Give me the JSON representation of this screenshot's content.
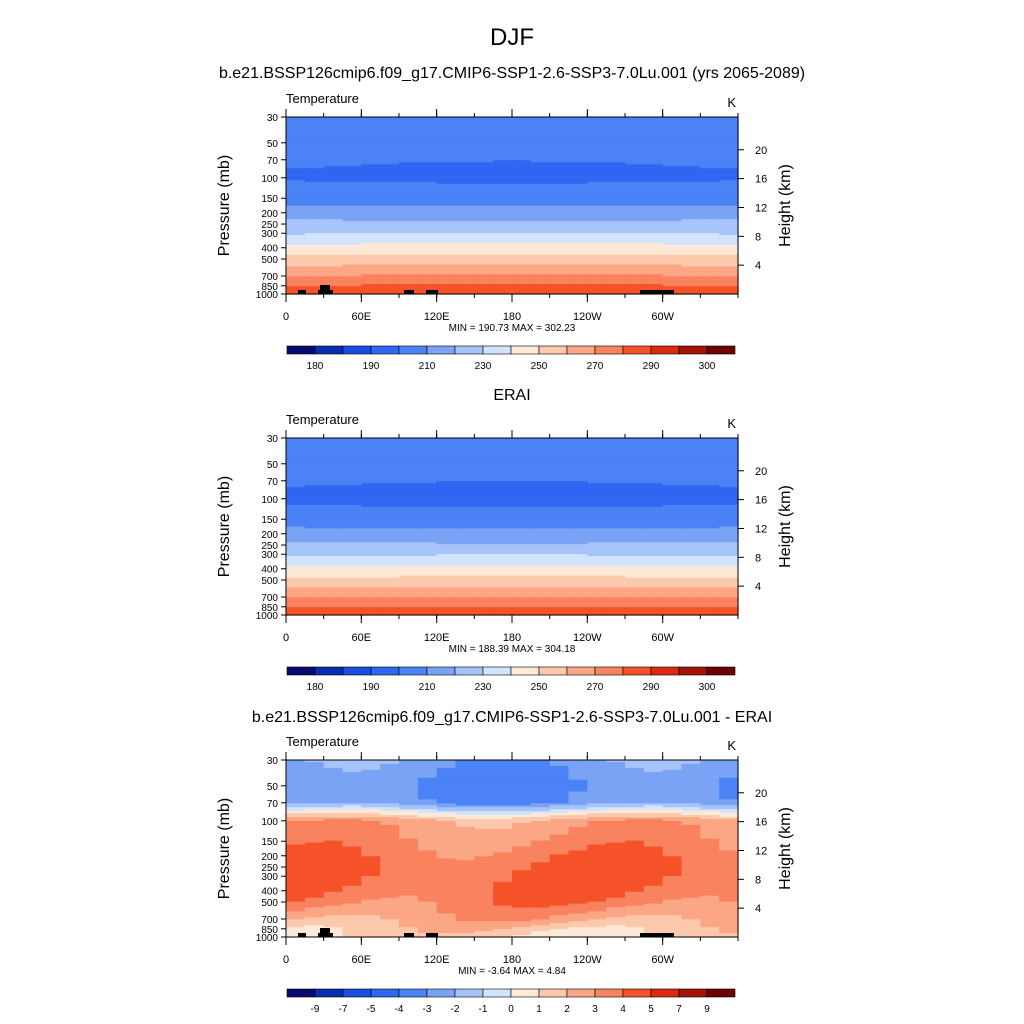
{
  "page": {
    "season": "DJF",
    "model_title": "b.e21.BSSP126cmip6.f09_g17.CMIP6-SSP1-2.6-SSP3-7.0Lu.001 (yrs 2065-2089)",
    "obs_title": "ERAI",
    "diff_title": "b.e21.BSSP126cmip6.f09_g17.CMIP6-SSP1-2.6-SSP3-7.0Lu.001 - ERAI"
  },
  "chart_data": [
    {
      "type": "heatmap",
      "panel": "model",
      "variable": "Temperature",
      "units": "K",
      "ylabel": "Pressure (mb)",
      "ylabel_right": "Height (km)",
      "x_ticks": [
        "0",
        "60E",
        "120E",
        "180",
        "120W",
        "60W"
      ],
      "y_ticks": [
        "30",
        "50",
        "70",
        "100",
        "150",
        "200",
        "250",
        "300",
        "400",
        "500",
        "700",
        "850",
        "1000"
      ],
      "height_ticks": [
        "20",
        "16",
        "12",
        "8",
        "4"
      ],
      "stats": "MIN = 190.73  MAX = 302.23",
      "colorbar_labels": [
        "180",
        "190",
        "210",
        "230",
        "250",
        "270",
        "290",
        "300"
      ],
      "levels_p": [
        30,
        50,
        70,
        100,
        150,
        200,
        250,
        300,
        400,
        500,
        700,
        850,
        1000
      ],
      "profile_K": [
        210,
        205,
        201,
        199,
        206,
        215,
        223,
        229,
        243,
        253,
        270,
        280,
        288
      ]
    },
    {
      "type": "heatmap",
      "panel": "obs",
      "variable": "Temperature",
      "units": "K",
      "ylabel": "Pressure (mb)",
      "ylabel_right": "Height (km)",
      "x_ticks": [
        "0",
        "60E",
        "120E",
        "180",
        "120W",
        "60W"
      ],
      "y_ticks": [
        "30",
        "50",
        "70",
        "100",
        "150",
        "200",
        "250",
        "300",
        "400",
        "500",
        "700",
        "850",
        "1000"
      ],
      "height_ticks": [
        "20",
        "16",
        "12",
        "8",
        "4"
      ],
      "stats": "MIN = 188.39  MAX = 304.18",
      "colorbar_labels": [
        "180",
        "190",
        "210",
        "230",
        "250",
        "270",
        "290",
        "300"
      ],
      "levels_p": [
        30,
        50,
        70,
        100,
        150,
        200,
        250,
        300,
        400,
        500,
        700,
        850,
        1000
      ],
      "profile_K": [
        210,
        205,
        201,
        198,
        205,
        214,
        222,
        228,
        242,
        252,
        269,
        279,
        287
      ]
    },
    {
      "type": "heatmap",
      "panel": "diff",
      "variable": "Temperature",
      "units": "K",
      "ylabel": "Pressure (mb)",
      "ylabel_right": "Height (km)",
      "x_ticks": [
        "0",
        "60E",
        "120E",
        "180",
        "120W",
        "60W"
      ],
      "y_ticks": [
        "30",
        "50",
        "70",
        "100",
        "150",
        "200",
        "250",
        "300",
        "400",
        "500",
        "700",
        "850",
        "1000"
      ],
      "height_ticks": [
        "20",
        "16",
        "12",
        "8",
        "4"
      ],
      "stats": "MIN =  -3.64  MAX =   4.84",
      "colorbar_labels": [
        "-9",
        "-7",
        "-5",
        "-4",
        "-3",
        "-2",
        "-1",
        "0",
        "1",
        "2",
        "3",
        "4",
        "5",
        "7",
        "9"
      ],
      "levels_p": [
        30,
        50,
        70,
        100,
        150,
        200,
        250,
        300,
        400,
        500,
        700,
        850,
        1000
      ],
      "profile_K": [
        -2.5,
        -3.2,
        -2.8,
        2.5,
        3.2,
        3.7,
        4.0,
        4.1,
        4.0,
        3.6,
        2.5,
        1.5,
        1.0
      ]
    }
  ],
  "colors": {
    "palette": [
      "#070a70",
      "#0a2db0",
      "#1a4de0",
      "#2f66f2",
      "#4b82f5",
      "#7aa3f5",
      "#a6c4fa",
      "#d2e3fc",
      "#fde9d8",
      "#fcc9ac",
      "#fba785",
      "#f9825f",
      "#f5522a",
      "#db2a0f",
      "#a31306",
      "#6e0000"
    ],
    "topography": "#000000"
  }
}
